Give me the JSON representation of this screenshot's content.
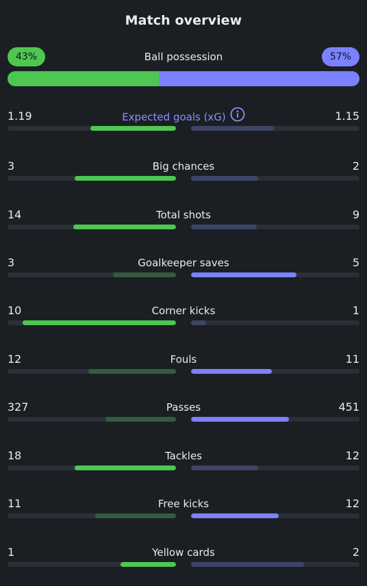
{
  "title": "Match overview",
  "colors": {
    "home_strong": "#4ec752",
    "home_weak": "#365a3e",
    "away_strong": "#7b82ff",
    "away_weak": "#3e4466",
    "track": "#2b3036"
  },
  "possession": {
    "label": "Ball possession",
    "home": "43%",
    "away": "57%",
    "home_fraction": 0.43,
    "away_fraction": 0.57
  },
  "stats": [
    {
      "label": "Expected goals (xG)",
      "home": "1.19",
      "away": "1.15",
      "home_fill": 0.51,
      "away_fill": 0.49,
      "winner": "home",
      "accent": true,
      "info_icon": "info-icon"
    },
    {
      "label": "Big chances",
      "home": "3",
      "away": "2",
      "home_fill": 0.6,
      "away_fill": 0.4,
      "winner": "home"
    },
    {
      "label": "Total shots",
      "home": "14",
      "away": "9",
      "home_fill": 0.61,
      "away_fill": 0.39,
      "winner": "home"
    },
    {
      "label": "Goalkeeper saves",
      "home": "3",
      "away": "5",
      "home_fill": 0.375,
      "away_fill": 0.625,
      "winner": "away"
    },
    {
      "label": "Corner kicks",
      "home": "10",
      "away": "1",
      "home_fill": 0.91,
      "away_fill": 0.09,
      "winner": "home"
    },
    {
      "label": "Fouls",
      "home": "12",
      "away": "11",
      "home_fill": 0.52,
      "away_fill": 0.48,
      "winner": "away"
    },
    {
      "label": "Passes",
      "home": "327",
      "away": "451",
      "home_fill": 0.42,
      "away_fill": 0.58,
      "winner": "away"
    },
    {
      "label": "Tackles",
      "home": "18",
      "away": "12",
      "home_fill": 0.6,
      "away_fill": 0.4,
      "winner": "home"
    },
    {
      "label": "Free kicks",
      "home": "11",
      "away": "12",
      "home_fill": 0.48,
      "away_fill": 0.52,
      "winner": "away"
    },
    {
      "label": "Yellow cards",
      "home": "1",
      "away": "2",
      "home_fill": 0.33,
      "away_fill": 0.67,
      "winner": "home"
    }
  ]
}
